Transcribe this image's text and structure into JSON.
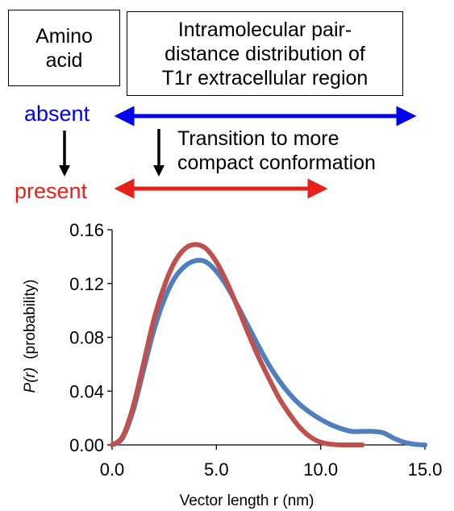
{
  "header": {
    "amino_box": [
      "Amino",
      "acid"
    ],
    "pdd_box": [
      "Intramolecular pair-",
      "distance distribution of",
      "T1r extracellular region"
    ],
    "absent_label": "absent",
    "present_label": "present",
    "transition_text": [
      "Transition to more",
      "compact conformation"
    ]
  },
  "colors": {
    "absent": "#0000ee",
    "present": "#e8201a",
    "curve_absent": "#4f7fbf",
    "curve_present": "#c0504d"
  },
  "chart_data": {
    "type": "line",
    "xlabel": "Vector length r (nm)",
    "ylabel_italic": "P(r)",
    "ylabel_extra": "(probability)",
    "xlim": [
      0,
      15
    ],
    "ylim": [
      0,
      0.16
    ],
    "xticks": [
      "0.0",
      "5.0",
      "10.0",
      "15.0"
    ],
    "xtick_values": [
      0,
      5,
      10,
      15
    ],
    "yticks": [
      "0.00",
      "0.04",
      "0.08",
      "0.12",
      "0.16"
    ],
    "ytick_values": [
      0,
      0.04,
      0.08,
      0.12,
      0.16
    ],
    "grid": false,
    "legend": "none",
    "series": [
      {
        "color": "#4f7fbf",
        "x": [
          0,
          0.5,
          1,
          1.5,
          2,
          2.5,
          3,
          3.5,
          4,
          4.5,
          5,
          5.5,
          6,
          6.5,
          7,
          7.5,
          8,
          8.5,
          9,
          9.5,
          10,
          10.5,
          11,
          11.5,
          12,
          12.5,
          13,
          13.5,
          14,
          14.5,
          15
        ],
        "y": [
          0,
          0.005,
          0.025,
          0.055,
          0.085,
          0.108,
          0.124,
          0.133,
          0.137,
          0.136,
          0.129,
          0.118,
          0.104,
          0.089,
          0.074,
          0.06,
          0.048,
          0.038,
          0.03,
          0.024,
          0.019,
          0.015,
          0.012,
          0.01,
          0.01,
          0.01,
          0.009,
          0.005,
          0.002,
          0.0005,
          0
        ]
      },
      {
        "color": "#c0504d",
        "x": [
          0,
          0.5,
          1,
          1.5,
          2,
          2.5,
          3,
          3.5,
          4,
          4.5,
          5,
          5.5,
          6,
          6.5,
          7,
          7.5,
          8,
          8.5,
          9,
          9.5,
          10,
          10.5,
          11,
          11.5,
          12
        ],
        "y": [
          0,
          0.006,
          0.028,
          0.06,
          0.093,
          0.118,
          0.136,
          0.146,
          0.149,
          0.146,
          0.136,
          0.121,
          0.103,
          0.084,
          0.066,
          0.05,
          0.035,
          0.023,
          0.013,
          0.006,
          0.002,
          0.0005,
          0,
          0,
          0
        ]
      }
    ]
  }
}
